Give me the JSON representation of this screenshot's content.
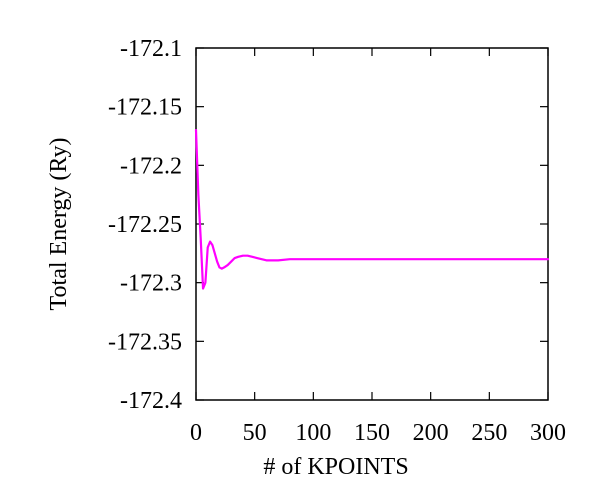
{
  "chart_data": {
    "type": "line",
    "title": "",
    "xlabel": "# of KPOINTS",
    "ylabel": "Total Energy (Ry)",
    "xlim": [
      0,
      300
    ],
    "ylim": [
      -172.4,
      -172.1
    ],
    "xticks": [
      0,
      50,
      100,
      150,
      200,
      250,
      300
    ],
    "yticks": [
      -172.1,
      -172.15,
      -172.2,
      -172.25,
      -172.3,
      -172.35,
      -172.4
    ],
    "xtick_labels": [
      "0",
      "50",
      "100",
      "150",
      "200",
      "250",
      "300"
    ],
    "ytick_labels": [
      "-172.1",
      "-172.15",
      "-172.2",
      "-172.25",
      "-172.3",
      "-172.35",
      "-172.4"
    ],
    "grid": false,
    "series": [
      {
        "color": "#ff00ff",
        "x": [
          0,
          2,
          4,
          6,
          8,
          10,
          12,
          14,
          16,
          18,
          20,
          22,
          24,
          27,
          30,
          33,
          36,
          40,
          44,
          48,
          52,
          56,
          60,
          65,
          70,
          80,
          90,
          100,
          110,
          120,
          150,
          200,
          250,
          300
        ],
        "y": [
          -172.17,
          -172.225,
          -172.262,
          -172.305,
          -172.3,
          -172.27,
          -172.265,
          -172.268,
          -172.275,
          -172.282,
          -172.287,
          -172.288,
          -172.287,
          -172.285,
          -172.282,
          -172.279,
          -172.278,
          -172.277,
          -172.277,
          -172.278,
          -172.279,
          -172.28,
          -172.281,
          -172.281,
          -172.281,
          -172.28,
          -172.28,
          -172.28,
          -172.28,
          -172.28,
          -172.28,
          -172.28,
          -172.28,
          -172.28
        ]
      }
    ]
  }
}
